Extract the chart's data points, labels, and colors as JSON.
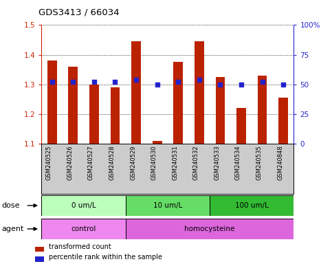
{
  "title": "GDS3413 / 66034",
  "samples": [
    "GSM240525",
    "GSM240526",
    "GSM240527",
    "GSM240528",
    "GSM240529",
    "GSM240530",
    "GSM240531",
    "GSM240532",
    "GSM240533",
    "GSM240534",
    "GSM240535",
    "GSM240848"
  ],
  "bar_values": [
    1.38,
    1.36,
    1.3,
    1.29,
    1.445,
    1.11,
    1.375,
    1.445,
    1.325,
    1.22,
    1.33,
    1.255
  ],
  "dot_values": [
    52,
    52,
    52,
    52,
    54,
    50,
    52,
    54,
    50,
    50,
    52,
    50
  ],
  "bar_bottom": 1.1,
  "ylim_left": [
    1.1,
    1.5
  ],
  "ylim_right": [
    0,
    100
  ],
  "yticks_left": [
    1.1,
    1.2,
    1.3,
    1.4,
    1.5
  ],
  "yticks_right": [
    0,
    25,
    50,
    75,
    100
  ],
  "ytick_labels_right": [
    "0",
    "25",
    "50",
    "75",
    "100%"
  ],
  "bar_color": "#bb2200",
  "dot_color": "#2222cc",
  "dose_groups": [
    {
      "label": "0 um/L",
      "start": 0,
      "end": 4,
      "color": "#bbffbb"
    },
    {
      "label": "10 um/L",
      "start": 4,
      "end": 8,
      "color": "#66dd66"
    },
    {
      "label": "100 um/L",
      "start": 8,
      "end": 12,
      "color": "#33bb33"
    }
  ],
  "agent_groups": [
    {
      "label": "control",
      "start": 0,
      "end": 4,
      "color": "#ee88ee"
    },
    {
      "label": "homocysteine",
      "start": 4,
      "end": 12,
      "color": "#dd66dd"
    }
  ],
  "dose_label": "dose",
  "agent_label": "agent",
  "legend_items": [
    {
      "label": "transformed count",
      "color": "#bb2200"
    },
    {
      "label": "percentile rank within the sample",
      "color": "#2222cc"
    }
  ],
  "tick_color_left": "#cc2200",
  "tick_color_right": "#2222cc",
  "xlabel_area_bg": "#cccccc"
}
